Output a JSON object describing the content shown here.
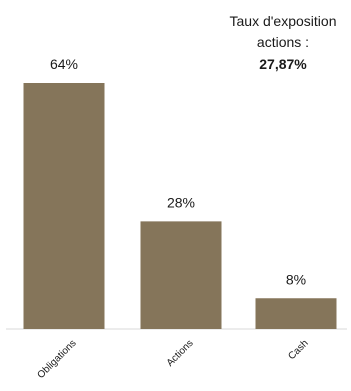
{
  "annotation": {
    "line1": "Taux d'exposition",
    "line2": "actions :",
    "value": "27,87%"
  },
  "chart_data": {
    "type": "bar",
    "categories": [
      "Obligations",
      "Actions",
      "Cash"
    ],
    "values": [
      64,
      28,
      8
    ],
    "data_labels": [
      "64%",
      "28%",
      "8%"
    ],
    "ylim": [
      0,
      64
    ],
    "grid": false,
    "legend": "none",
    "bar_color": "#85755a",
    "text_color": "#1a1a1a",
    "axis_color": "#d9d9d9"
  }
}
